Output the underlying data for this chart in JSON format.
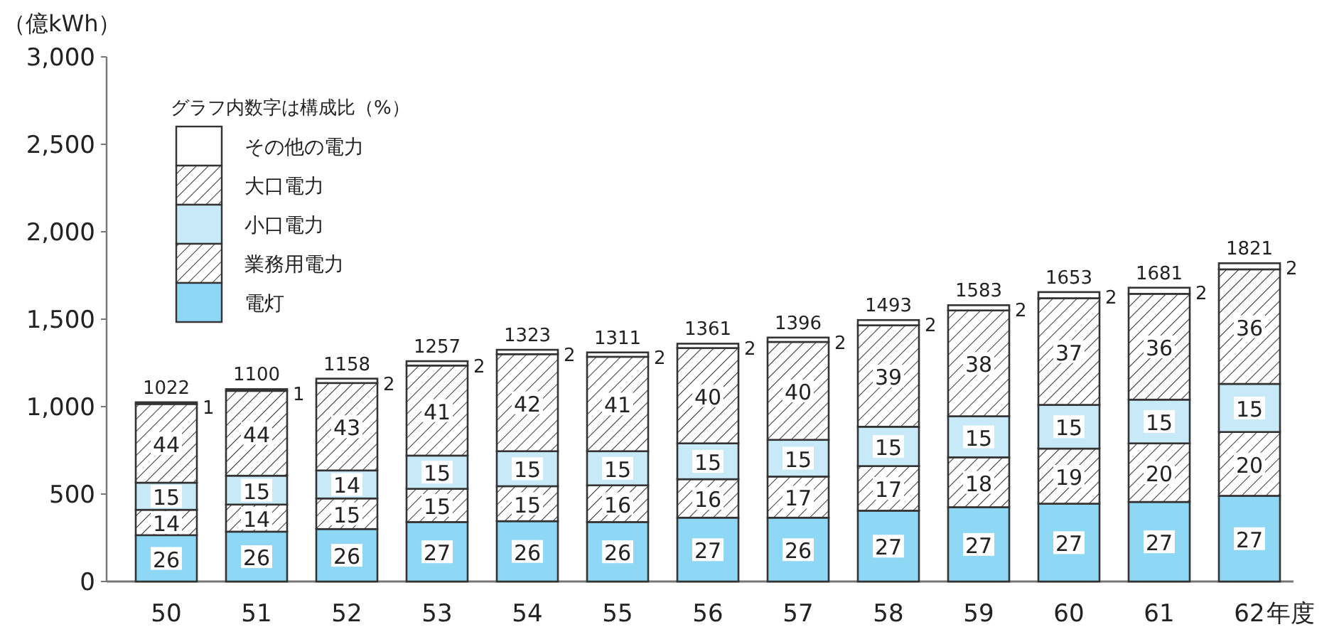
{
  "chart_data": {
    "type": "bar",
    "stacked": true,
    "ylabel": "（億kWh）",
    "xlabel": "年度",
    "legend_title": "グラフ内数字は構成比（%）",
    "legend": "top left",
    "ylim": [
      0,
      3000
    ],
    "yticks": [
      {
        "value": 0,
        "label": "0"
      },
      {
        "value": 500,
        "label": "500"
      },
      {
        "value": 1000,
        "label": "1,000"
      },
      {
        "value": 1500,
        "label": "1,500"
      },
      {
        "value": 2000,
        "label": "2,000"
      },
      {
        "value": 2500,
        "label": "2,500"
      },
      {
        "value": 3000,
        "label": "3,000"
      }
    ],
    "categories": [
      "50",
      "51",
      "52",
      "53",
      "54",
      "55",
      "56",
      "57",
      "58",
      "59",
      "60",
      "61",
      "62"
    ],
    "totals": [
      "1022",
      "1100",
      "1158",
      "1257",
      "1323",
      "1311",
      "1361",
      "1396",
      "1493",
      "1583",
      "1653",
      "1681",
      "1821"
    ],
    "series": [
      {
        "name": "電灯",
        "color": "#8fd8f5",
        "values": [
          265,
          285,
          300,
          340,
          345,
          340,
          365,
          365,
          405,
          425,
          445,
          455,
          490
        ]
      },
      {
        "name": "業務用電力",
        "color": "#333333",
        "values": [
          145,
          155,
          175,
          190,
          200,
          210,
          220,
          235,
          255,
          285,
          315,
          335,
          365
        ]
      },
      {
        "name": "小口電力",
        "color": "#c8eaf8",
        "values": [
          155,
          165,
          160,
          190,
          200,
          195,
          205,
          210,
          225,
          235,
          250,
          250,
          275
        ]
      },
      {
        "name": "大口電力",
        "color": "#333333",
        "values": [
          450,
          485,
          500,
          515,
          555,
          540,
          545,
          560,
          580,
          605,
          610,
          605,
          655
        ]
      },
      {
        "name": "その他の電力",
        "color": "#ffffff",
        "values": [
          10,
          10,
          25,
          25,
          25,
          25,
          25,
          25,
          30,
          30,
          35,
          35,
          35
        ]
      }
    ],
    "annotations": [
      {
        "text": "26",
        "x": "50",
        "y": 132
      },
      {
        "text": "14",
        "x": "50",
        "y": 337
      },
      {
        "text": "15",
        "x": "50",
        "y": 487
      },
      {
        "text": "44",
        "x": "50",
        "y": 790
      },
      {
        "text": "1",
        "x": "50",
        "y": 1025
      },
      {
        "text": "26",
        "x": "51",
        "y": 142
      },
      {
        "text": "14",
        "x": "51",
        "y": 362
      },
      {
        "text": "15",
        "x": "51",
        "y": 522
      },
      {
        "text": "44",
        "x": "51",
        "y": 847
      },
      {
        "text": "1",
        "x": "51",
        "y": 1100
      },
      {
        "text": "26",
        "x": "52",
        "y": 150
      },
      {
        "text": "15",
        "x": "52",
        "y": 387
      },
      {
        "text": "14",
        "x": "52",
        "y": 555
      },
      {
        "text": "43",
        "x": "52",
        "y": 885
      },
      {
        "text": "2",
        "x": "52",
        "y": 1160
      },
      {
        "text": "27",
        "x": "53",
        "y": 170
      },
      {
        "text": "15",
        "x": "53",
        "y": 435
      },
      {
        "text": "15",
        "x": "53",
        "y": 625
      },
      {
        "text": "41",
        "x": "53",
        "y": 977
      },
      {
        "text": "2",
        "x": "53",
        "y": 1260
      },
      {
        "text": "26",
        "x": "54",
        "y": 172
      },
      {
        "text": "15",
        "x": "54",
        "y": 445
      },
      {
        "text": "15",
        "x": "54",
        "y": 645
      },
      {
        "text": "42",
        "x": "54",
        "y": 1022
      },
      {
        "text": "2",
        "x": "54",
        "y": 1325
      },
      {
        "text": "26",
        "x": "55",
        "y": 170
      },
      {
        "text": "16",
        "x": "55",
        "y": 445
      },
      {
        "text": "15",
        "x": "55",
        "y": 647
      },
      {
        "text": "41",
        "x": "55",
        "y": 1015
      },
      {
        "text": "2",
        "x": "55",
        "y": 1310
      },
      {
        "text": "27",
        "x": "56",
        "y": 182
      },
      {
        "text": "16",
        "x": "56",
        "y": 475
      },
      {
        "text": "15",
        "x": "56",
        "y": 687
      },
      {
        "text": "40",
        "x": "56",
        "y": 1062
      },
      {
        "text": "2",
        "x": "56",
        "y": 1360
      },
      {
        "text": "26",
        "x": "57",
        "y": 182
      },
      {
        "text": "17",
        "x": "57",
        "y": 482
      },
      {
        "text": "15",
        "x": "57",
        "y": 705
      },
      {
        "text": "40",
        "x": "57",
        "y": 1090
      },
      {
        "text": "2",
        "x": "57",
        "y": 1395
      },
      {
        "text": "27",
        "x": "58",
        "y": 202
      },
      {
        "text": "17",
        "x": "58",
        "y": 532
      },
      {
        "text": "15",
        "x": "58",
        "y": 772
      },
      {
        "text": "39",
        "x": "58",
        "y": 1175
      },
      {
        "text": "2",
        "x": "58",
        "y": 1495
      },
      {
        "text": "27",
        "x": "59",
        "y": 212
      },
      {
        "text": "18",
        "x": "59",
        "y": 567
      },
      {
        "text": "15",
        "x": "59",
        "y": 827
      },
      {
        "text": "38",
        "x": "59",
        "y": 1247
      },
      {
        "text": "2",
        "x": "59",
        "y": 1580
      },
      {
        "text": "27",
        "x": "60",
        "y": 222
      },
      {
        "text": "19",
        "x": "60",
        "y": 602
      },
      {
        "text": "15",
        "x": "60",
        "y": 885
      },
      {
        "text": "37",
        "x": "60",
        "y": 1315
      },
      {
        "text": "2",
        "x": "60",
        "y": 1655
      },
      {
        "text": "27",
        "x": "61",
        "y": 227
      },
      {
        "text": "20",
        "x": "61",
        "y": 622
      },
      {
        "text": "15",
        "x": "61",
        "y": 915
      },
      {
        "text": "36",
        "x": "61",
        "y": 1342
      },
      {
        "text": "2",
        "x": "61",
        "y": 1680
      },
      {
        "text": "27",
        "x": "62",
        "y": 245
      },
      {
        "text": "20",
        "x": "62",
        "y": 672
      },
      {
        "text": "15",
        "x": "62",
        "y": 992
      },
      {
        "text": "36",
        "x": "62",
        "y": 1457
      },
      {
        "text": "2",
        "x": "62",
        "y": 1820
      }
    ]
  }
}
